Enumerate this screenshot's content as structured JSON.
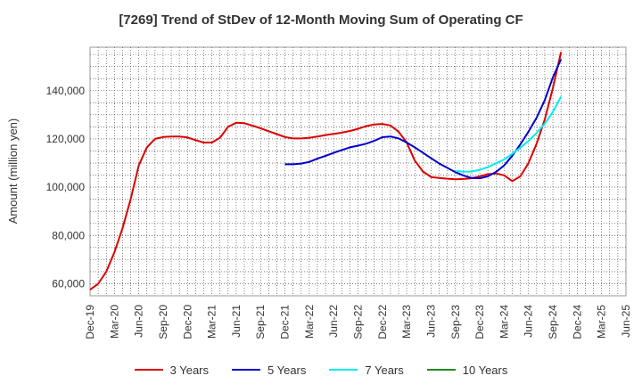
{
  "chart_data": {
    "type": "line",
    "title": "[7269]  Trend of StDev of 12-Month Moving Sum of Operating CF",
    "xlabel": "",
    "ylabel": "Amount (million yen)",
    "ylim": [
      55000,
      158000
    ],
    "yticks": [
      60000,
      80000,
      100000,
      120000,
      140000
    ],
    "ytick_labels": [
      "60,000",
      "80,000",
      "100,000",
      "120,000",
      "140,000"
    ],
    "x_tick_labels": [
      "Dec-19",
      "Mar-20",
      "Jun-20",
      "Sep-20",
      "Dec-20",
      "Mar-21",
      "Jun-21",
      "Sep-21",
      "Dec-21",
      "Mar-22",
      "Jun-22",
      "Sep-22",
      "Dec-22",
      "Mar-23",
      "Jun-23",
      "Sep-23",
      "Dec-23",
      "Mar-24",
      "Jun-24",
      "Sep-24",
      "Dec-24",
      "Mar-25",
      "Jun-25"
    ],
    "grid": true,
    "legend_position": "bottom",
    "series": [
      {
        "name": "3 Years",
        "color": "#dd0000",
        "values": [
          57500,
          60000,
          65000,
          73000,
          83000,
          95000,
          109000,
          116500,
          120000,
          120800,
          121000,
          121000,
          120600,
          119500,
          118500,
          118500,
          120500,
          125000,
          126700,
          126500,
          125500,
          124400,
          123200,
          122000,
          120800,
          120200,
          120200,
          120500,
          121000,
          121600,
          122100,
          122600,
          123300,
          124200,
          125300,
          126000,
          126200,
          125600,
          123000,
          118500,
          111000,
          106500,
          104200,
          103800,
          103500,
          103300,
          103400,
          103700,
          104500,
          105400,
          105700,
          104900,
          102500,
          104500,
          110000,
          118000,
          128000,
          141000,
          156000
        ]
      },
      {
        "name": "5 Years",
        "color": "#0000cc",
        "values": [
          null,
          null,
          null,
          null,
          null,
          null,
          null,
          null,
          null,
          null,
          null,
          null,
          null,
          null,
          null,
          null,
          null,
          null,
          null,
          null,
          null,
          null,
          null,
          null,
          109500,
          109500,
          109800,
          110500,
          111800,
          113000,
          114200,
          115400,
          116500,
          117200,
          118000,
          119200,
          120700,
          121000,
          120200,
          118500,
          116500,
          114300,
          112000,
          109800,
          108000,
          106200,
          104800,
          103800,
          103700,
          104500,
          106300,
          109000,
          113000,
          117800,
          123000,
          128800,
          136000,
          145500,
          153000
        ]
      },
      {
        "name": "7 Years",
        "color": "#00eeee",
        "values": [
          null,
          null,
          null,
          null,
          null,
          null,
          null,
          null,
          null,
          null,
          null,
          null,
          null,
          null,
          null,
          null,
          null,
          null,
          null,
          null,
          null,
          null,
          null,
          null,
          null,
          null,
          null,
          null,
          null,
          null,
          null,
          null,
          null,
          null,
          null,
          null,
          null,
          null,
          null,
          null,
          null,
          null,
          null,
          null,
          null,
          106700,
          106400,
          106500,
          107200,
          108300,
          109900,
          111500,
          113800,
          116400,
          119200,
          122500,
          126300,
          131200,
          137500
        ]
      },
      {
        "name": "10 Years",
        "color": "#228822",
        "values": []
      }
    ]
  }
}
